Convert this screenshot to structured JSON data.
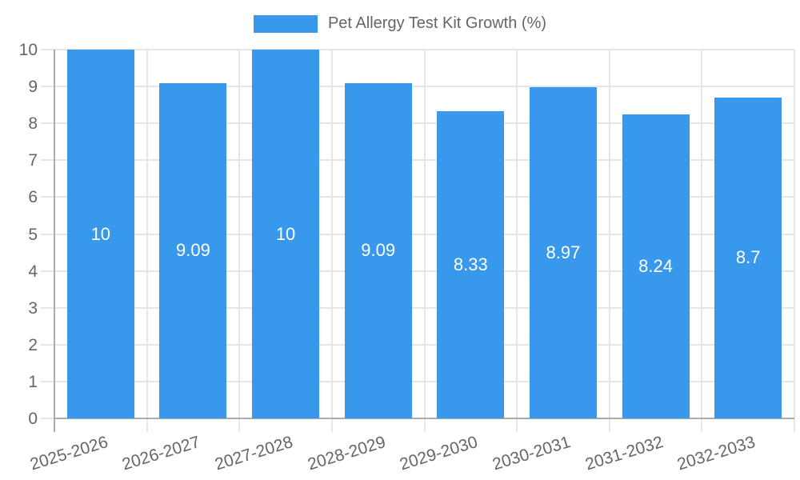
{
  "chart_data": {
    "type": "bar",
    "title": "Pet Allergy Test Kit Growth (%)",
    "legend": {
      "position": "top",
      "label": "Pet Allergy Test Kit Growth (%)"
    },
    "categories": [
      "2025-2026",
      "2026-2027",
      "2027-2028",
      "2028-2029",
      "2029-2030",
      "2030-2031",
      "2031-2032",
      "2032-2033"
    ],
    "values": [
      10,
      9.09,
      10,
      9.09,
      8.33,
      8.97,
      8.24,
      8.7
    ],
    "value_labels": [
      "10",
      "9.09",
      "10",
      "9.09",
      "8.33",
      "8.97",
      "8.24",
      "8.7"
    ],
    "xlabel": "",
    "ylabel": "",
    "ylim": [
      0,
      10
    ],
    "yticks": [
      "0",
      "1",
      "2",
      "3",
      "4",
      "5",
      "6",
      "7",
      "8",
      "9",
      "10"
    ],
    "grid": true,
    "colors": {
      "bar": "#3899EC",
      "grid": "#E6E6E6",
      "axis": "#ACACAC",
      "tick_text": "#666666",
      "value_label": "#FFFFFF",
      "background": "#FFFFFF"
    }
  }
}
